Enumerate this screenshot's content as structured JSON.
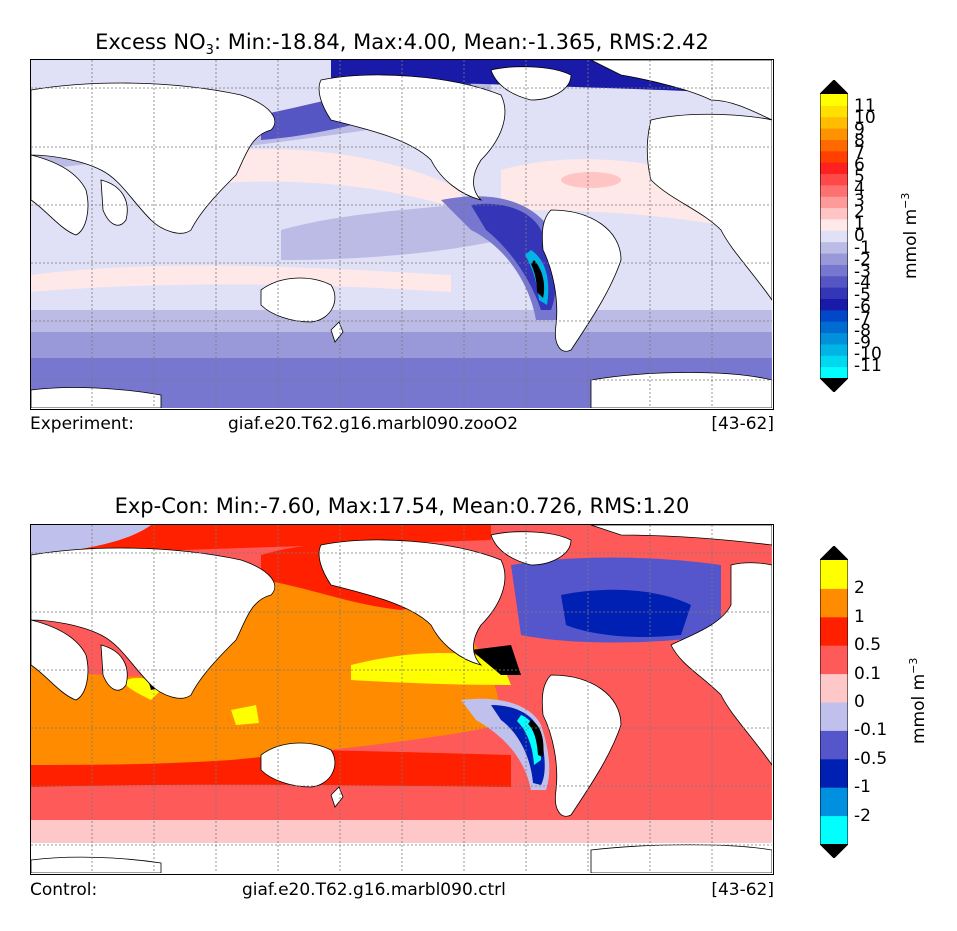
{
  "panel1": {
    "title_prefix": "Excess NO",
    "title_sub": "3",
    "title_suffix": ": Min:-18.84, Max:4.00, Mean:-1.365, RMS:2.42",
    "footer_left": "Experiment:",
    "footer_mid": "giaf.e20.T62.g16.marbl090.zooO2",
    "footer_right": "[43-62]",
    "colorbar": {
      "unit": "mmol m",
      "unit_exp": "−3",
      "colors": [
        "#00ffff",
        "#00d8f0",
        "#00b4e6",
        "#0090dc",
        "#006cd2",
        "#0048c8",
        "#1a1aa8",
        "#3535b8",
        "#5555c4",
        "#7777cf",
        "#9999da",
        "#bbbbe6",
        "#e0e0f6",
        "#ffe8e8",
        "#ffc4c4",
        "#ff9a9a",
        "#ff7070",
        "#ff4848",
        "#ff2020",
        "#ff4000",
        "#ff6a00",
        "#ff9200",
        "#ffbc00",
        "#ffe000",
        "#ffff00"
      ],
      "labels": [
        "-11",
        "-10",
        "-9",
        "-8",
        "-7",
        "-6",
        "-5",
        "-4",
        "-3",
        "-2",
        "-1",
        "0",
        "1",
        "2",
        "3",
        "4",
        "5",
        "6",
        "7",
        "8",
        "9",
        "10",
        "11"
      ]
    }
  },
  "panel2": {
    "title": "Exp-Con: Min:-7.60, Max:17.54, Mean:0.726, RMS:1.20",
    "footer_left": "Control:",
    "footer_mid": "giaf.e20.T62.g16.marbl090.ctrl",
    "footer_right": "[43-62]",
    "colorbar": {
      "unit": "mmol m",
      "unit_exp": "−3",
      "colors": [
        "#00ffff",
        "#0090e0",
        "#0020b4",
        "#5555cc",
        "#c0c0ec",
        "#ffc8c8",
        "#ff5a5a",
        "#ff2000",
        "#ff8c00",
        "#ffff00"
      ],
      "labels": [
        "-2",
        "-1",
        "-0.5",
        "-0.1",
        "0",
        "0.1",
        "0.5",
        "1",
        "2"
      ]
    }
  },
  "colors": {
    "land": "#ffffff",
    "grid": "#7a7a7a",
    "extreme": "#000000"
  }
}
